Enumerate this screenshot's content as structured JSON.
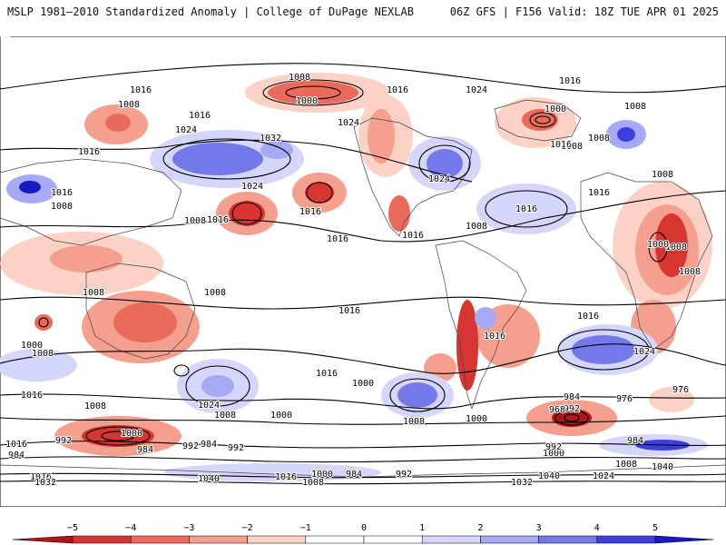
{
  "header": {
    "left": "MSLP 1981–2010 Standardized Anomaly | College of DuPage NEXLAB",
    "right": "06Z GFS | F156 Valid: 18Z TUE APR 01 2025"
  },
  "colorbar": {
    "ticks": [
      "−5",
      "−4",
      "−3",
      "−2",
      "−1",
      "0",
      "1",
      "2",
      "3",
      "4",
      "5"
    ],
    "bins": [
      "#b1141c",
      "#d63532",
      "#ea6b5c",
      "#f5a08e",
      "#fcd2c7",
      "#ffffff",
      "#ffffff",
      "#d4d6fb",
      "#a6a9f3",
      "#7479ea",
      "#3c3fdc",
      "#1719c5"
    ]
  },
  "isobars": {
    "labels": [
      {
        "t": "1008",
        "pos": "pac-low"
      },
      {
        "t": "1000",
        "pos": "pac-low-c"
      },
      {
        "t": "1016"
      },
      {
        "t": "1008"
      },
      {
        "t": "1016"
      },
      {
        "t": "1024"
      },
      {
        "t": "1032"
      },
      {
        "t": "1016"
      },
      {
        "t": "1008"
      },
      {
        "t": "1016"
      },
      {
        "t": "1008"
      },
      {
        "t": "1016"
      },
      {
        "t": "1024"
      },
      {
        "t": "1016"
      },
      {
        "t": "1016"
      },
      {
        "t": "1016"
      },
      {
        "t": "1008"
      },
      {
        "t": "1016"
      },
      {
        "t": "1024"
      },
      {
        "t": "1024"
      },
      {
        "t": "1016"
      },
      {
        "t": "1024"
      },
      {
        "t": "1000"
      },
      {
        "t": "1008"
      },
      {
        "t": "1016"
      },
      {
        "t": "1016"
      },
      {
        "t": "1008"
      },
      {
        "t": "1008"
      },
      {
        "t": "1016"
      },
      {
        "t": "1008"
      },
      {
        "t": "1008"
      },
      {
        "t": "1008"
      },
      {
        "t": "1000"
      },
      {
        "t": "1008"
      },
      {
        "t": "1008"
      },
      {
        "t": "1016"
      },
      {
        "t": "1016"
      },
      {
        "t": "1024"
      },
      {
        "t": "1008"
      },
      {
        "t": "1016"
      },
      {
        "t": "1000"
      },
      {
        "t": "1024"
      },
      {
        "t": "1016"
      },
      {
        "t": "1016"
      },
      {
        "t": "1008"
      },
      {
        "t": "1000"
      },
      {
        "t": "1024"
      },
      {
        "t": "1008"
      },
      {
        "t": "1000"
      },
      {
        "t": "984"
      },
      {
        "t": "992"
      },
      {
        "t": "976"
      },
      {
        "t": "976"
      },
      {
        "t": "968"
      },
      {
        "t": "1008"
      },
      {
        "t": "1000"
      },
      {
        "t": "992"
      },
      {
        "t": "984"
      },
      {
        "t": "992"
      },
      {
        "t": "984"
      },
      {
        "t": "992"
      },
      {
        "t": "1000"
      },
      {
        "t": "1000"
      },
      {
        "t": "992"
      },
      {
        "t": "984"
      },
      {
        "t": "1008"
      },
      {
        "t": "1016"
      },
      {
        "t": "984"
      },
      {
        "t": "1016"
      },
      {
        "t": "1032"
      },
      {
        "t": "1040"
      },
      {
        "t": "1016"
      },
      {
        "t": "1000"
      },
      {
        "t": "984"
      },
      {
        "t": "992"
      },
      {
        "t": "1008"
      },
      {
        "t": "1040"
      },
      {
        "t": "1024"
      },
      {
        "t": "1032"
      },
      {
        "t": "1040"
      },
      {
        "t": "1016"
      }
    ]
  }
}
